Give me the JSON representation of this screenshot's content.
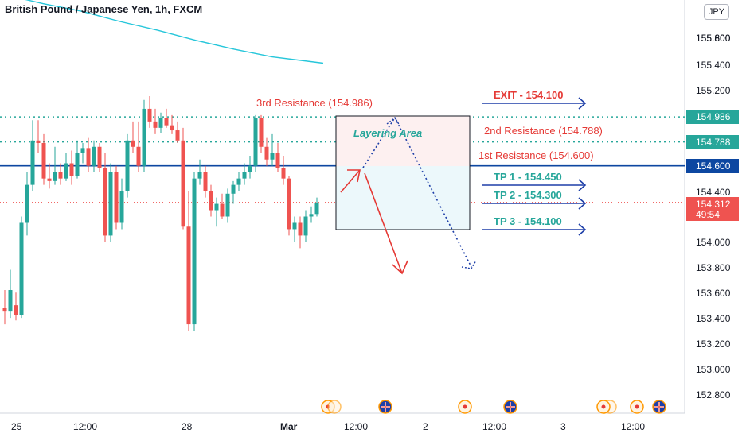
{
  "header": {
    "title": "British Pound / Japanese Yen, 1h, FXCM",
    "currency_button": "JPY"
  },
  "price_axis": {
    "ticks": [
      "155.800",
      "155.600",
      "155.400",
      "155.200",
      "154.400",
      "154.000",
      "153.800",
      "153.600",
      "153.400",
      "153.200",
      "153.000",
      "152.800"
    ],
    "current_price": "154.312",
    "countdown": "49:54"
  },
  "time_axis": {
    "labels": [
      "25",
      "12:00",
      "28",
      "Mar",
      "12:00",
      "2",
      "12:00",
      "3",
      "12:00"
    ]
  },
  "annotations": {
    "third_resistance": "3rd Resistance (154.986)",
    "second_resistance": "2nd Resistance (154.788)",
    "first_resistance": "1st Resistance (154.600)",
    "layering_area": "Layering Area",
    "exit": "EXIT - 154.100",
    "tp1": "TP 1 - 154.450",
    "tp2": "TP 2 - 154.300",
    "tp3": "TP 3 - 154.100"
  },
  "colors": {
    "up_candle": "#26a69a",
    "down_candle": "#ef5350",
    "resistance_line": "#26a69a",
    "support_line": "#0d47a1",
    "arrow_blue": "#1e3fa8",
    "annotation_red": "#e53935",
    "ma_line": "#26c6da",
    "current_price_line": "#ef5350"
  },
  "chart_data": {
    "type": "candlestick",
    "symbol": "GBPJPY",
    "interval": "1h",
    "ylim": [
      152.7,
      155.9
    ],
    "levels": [
      {
        "label": "154.986",
        "value": 154.986,
        "style": "dotted",
        "color": "#26a69a"
      },
      {
        "label": "154.788",
        "value": 154.788,
        "style": "dotted",
        "color": "#26a69a"
      },
      {
        "label": "154.600",
        "value": 154.6,
        "style": "solid",
        "color": "#0d47a1"
      }
    ],
    "current_price": 154.312,
    "moving_average": [
      {
        "t": 0,
        "y": 155.95
      },
      {
        "t": 6,
        "y": 155.88
      },
      {
        "t": 12,
        "y": 155.82
      },
      {
        "t": 18,
        "y": 155.74
      },
      {
        "t": 24,
        "y": 155.67
      },
      {
        "t": 30,
        "y": 155.59
      },
      {
        "t": 36,
        "y": 155.52
      },
      {
        "t": 42,
        "y": 155.46
      },
      {
        "t": 50,
        "y": 155.41
      }
    ],
    "candles": [
      {
        "o": 153.48,
        "h": 153.62,
        "l": 153.35,
        "c": 153.45
      },
      {
        "o": 153.45,
        "h": 153.78,
        "l": 153.4,
        "c": 153.62
      },
      {
        "o": 153.5,
        "h": 153.6,
        "l": 153.38,
        "c": 153.42
      },
      {
        "o": 153.42,
        "h": 154.2,
        "l": 153.4,
        "c": 154.15
      },
      {
        "o": 154.15,
        "h": 154.55,
        "l": 154.05,
        "c": 154.45
      },
      {
        "o": 154.45,
        "h": 154.96,
        "l": 154.4,
        "c": 154.8
      },
      {
        "o": 154.8,
        "h": 154.96,
        "l": 154.7,
        "c": 154.78
      },
      {
        "o": 154.78,
        "h": 154.85,
        "l": 154.45,
        "c": 154.5
      },
      {
        "o": 154.5,
        "h": 154.62,
        "l": 154.42,
        "c": 154.48
      },
      {
        "o": 154.48,
        "h": 154.75,
        "l": 154.45,
        "c": 154.55
      },
      {
        "o": 154.55,
        "h": 154.62,
        "l": 154.45,
        "c": 154.5
      },
      {
        "o": 154.5,
        "h": 154.7,
        "l": 154.48,
        "c": 154.62
      },
      {
        "o": 154.62,
        "h": 154.72,
        "l": 154.45,
        "c": 154.52
      },
      {
        "o": 154.52,
        "h": 154.8,
        "l": 154.5,
        "c": 154.7
      },
      {
        "o": 154.7,
        "h": 154.78,
        "l": 154.62,
        "c": 154.74
      },
      {
        "o": 154.74,
        "h": 154.82,
        "l": 154.55,
        "c": 154.6
      },
      {
        "o": 154.6,
        "h": 154.8,
        "l": 154.55,
        "c": 154.75
      },
      {
        "o": 154.75,
        "h": 154.78,
        "l": 154.55,
        "c": 154.58
      },
      {
        "o": 154.58,
        "h": 154.7,
        "l": 154.0,
        "c": 154.05
      },
      {
        "o": 154.05,
        "h": 154.62,
        "l": 154.0,
        "c": 154.55
      },
      {
        "o": 154.55,
        "h": 154.6,
        "l": 154.1,
        "c": 154.15
      },
      {
        "o": 154.15,
        "h": 154.5,
        "l": 154.1,
        "c": 154.4
      },
      {
        "o": 154.4,
        "h": 154.85,
        "l": 154.35,
        "c": 154.8
      },
      {
        "o": 154.8,
        "h": 154.95,
        "l": 154.7,
        "c": 154.75
      },
      {
        "o": 154.75,
        "h": 154.95,
        "l": 154.55,
        "c": 154.6
      },
      {
        "o": 154.6,
        "h": 155.12,
        "l": 154.55,
        "c": 155.05
      },
      {
        "o": 155.05,
        "h": 155.15,
        "l": 154.9,
        "c": 154.95
      },
      {
        "o": 154.95,
        "h": 155.05,
        "l": 154.85,
        "c": 154.9
      },
      {
        "o": 154.9,
        "h": 155.02,
        "l": 154.86,
        "c": 154.98
      },
      {
        "o": 154.98,
        "h": 155.05,
        "l": 154.9,
        "c": 154.92
      },
      {
        "o": 154.92,
        "h": 155.0,
        "l": 154.85,
        "c": 154.88
      },
      {
        "o": 154.88,
        "h": 154.95,
        "l": 154.78,
        "c": 154.8
      },
      {
        "o": 154.8,
        "h": 154.9,
        "l": 154.1,
        "c": 154.12
      },
      {
        "o": 154.12,
        "h": 154.4,
        "l": 153.3,
        "c": 153.35
      },
      {
        "o": 153.35,
        "h": 154.55,
        "l": 153.3,
        "c": 154.5
      },
      {
        "o": 154.5,
        "h": 154.65,
        "l": 154.45,
        "c": 154.55
      },
      {
        "o": 154.55,
        "h": 154.6,
        "l": 154.35,
        "c": 154.4
      },
      {
        "o": 154.4,
        "h": 154.45,
        "l": 154.2,
        "c": 154.25
      },
      {
        "o": 154.25,
        "h": 154.35,
        "l": 154.12,
        "c": 154.3
      },
      {
        "o": 154.3,
        "h": 154.38,
        "l": 154.18,
        "c": 154.2
      },
      {
        "o": 154.2,
        "h": 154.42,
        "l": 154.15,
        "c": 154.38
      },
      {
        "o": 154.38,
        "h": 154.48,
        "l": 154.3,
        "c": 154.45
      },
      {
        "o": 154.45,
        "h": 154.55,
        "l": 154.4,
        "c": 154.5
      },
      {
        "o": 154.5,
        "h": 154.62,
        "l": 154.45,
        "c": 154.55
      },
      {
        "o": 154.55,
        "h": 154.68,
        "l": 154.5,
        "c": 154.6
      },
      {
        "o": 154.6,
        "h": 155.0,
        "l": 154.55,
        "c": 154.98
      },
      {
        "o": 154.98,
        "h": 155.0,
        "l": 154.7,
        "c": 154.75
      },
      {
        "o": 154.75,
        "h": 154.82,
        "l": 154.6,
        "c": 154.65
      },
      {
        "o": 154.65,
        "h": 154.85,
        "l": 154.6,
        "c": 154.7
      },
      {
        "o": 154.7,
        "h": 154.78,
        "l": 154.55,
        "c": 154.58
      },
      {
        "o": 154.58,
        "h": 154.68,
        "l": 154.45,
        "c": 154.5
      },
      {
        "o": 154.5,
        "h": 154.52,
        "l": 154.05,
        "c": 154.1
      },
      {
        "o": 154.1,
        "h": 154.2,
        "l": 154.0,
        "c": 154.15
      },
      {
        "o": 154.15,
        "h": 154.2,
        "l": 153.95,
        "c": 154.05
      },
      {
        "o": 154.05,
        "h": 154.25,
        "l": 154.0,
        "c": 154.2
      },
      {
        "o": 154.2,
        "h": 154.28,
        "l": 154.15,
        "c": 154.22
      },
      {
        "o": 154.22,
        "h": 154.35,
        "l": 154.2,
        "c": 154.31
      }
    ]
  }
}
